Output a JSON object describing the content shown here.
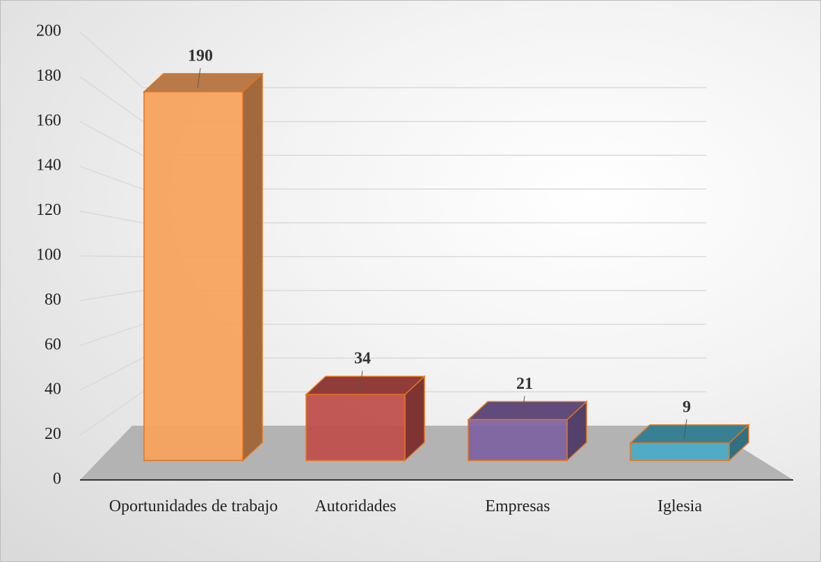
{
  "chart_data": {
    "type": "bar3d",
    "categories": [
      "Oportunidades de trabajo",
      "Autoridades",
      "Empresas",
      "Iglesia"
    ],
    "values": [
      190,
      34,
      21,
      9
    ],
    "colors": [
      "#f7a25e",
      "#c0504d",
      "#8064a2",
      "#4bacc6"
    ],
    "ylim": [
      0,
      200
    ],
    "yticks": [
      0,
      20,
      40,
      60,
      80,
      100,
      120,
      140,
      160,
      180,
      200
    ],
    "grid": true
  }
}
